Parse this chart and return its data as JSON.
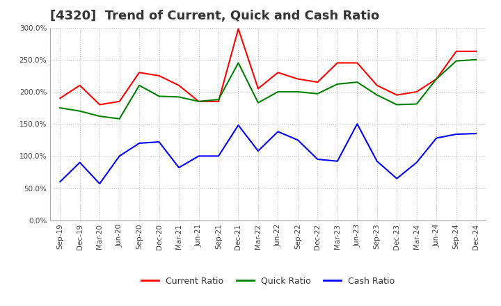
{
  "title": "[4320]  Trend of Current, Quick and Cash Ratio",
  "x_labels": [
    "Sep-19",
    "Dec-19",
    "Mar-20",
    "Jun-20",
    "Sep-20",
    "Dec-20",
    "Mar-21",
    "Jun-21",
    "Sep-21",
    "Dec-21",
    "Mar-22",
    "Jun-22",
    "Sep-22",
    "Dec-22",
    "Mar-23",
    "Jun-23",
    "Sep-23",
    "Dec-23",
    "Mar-24",
    "Jun-24",
    "Sep-24",
    "Dec-24"
  ],
  "current_ratio": [
    190,
    210,
    180,
    185,
    230,
    225,
    210,
    185,
    185,
    298,
    205,
    230,
    220,
    215,
    245,
    245,
    210,
    195,
    200,
    220,
    263,
    263
  ],
  "quick_ratio": [
    175,
    170,
    162,
    158,
    210,
    193,
    192,
    185,
    188,
    245,
    183,
    200,
    200,
    197,
    212,
    215,
    195,
    180,
    181,
    220,
    248,
    250
  ],
  "cash_ratio": [
    60,
    90,
    57,
    100,
    120,
    122,
    82,
    100,
    100,
    148,
    108,
    138,
    125,
    95,
    92,
    150,
    92,
    65,
    90,
    128,
    134,
    135
  ],
  "current_color": "#FF0000",
  "quick_color": "#008000",
  "cash_color": "#0000FF",
  "ylim": [
    0,
    300
  ],
  "yticks": [
    0,
    50,
    100,
    150,
    200,
    250,
    300
  ],
  "background_color": "#FFFFFF",
  "grid_color": "#AAAAAA",
  "title_fontsize": 13,
  "tick_fontsize": 7.5,
  "legend_labels": [
    "Current Ratio",
    "Quick Ratio",
    "Cash Ratio"
  ]
}
